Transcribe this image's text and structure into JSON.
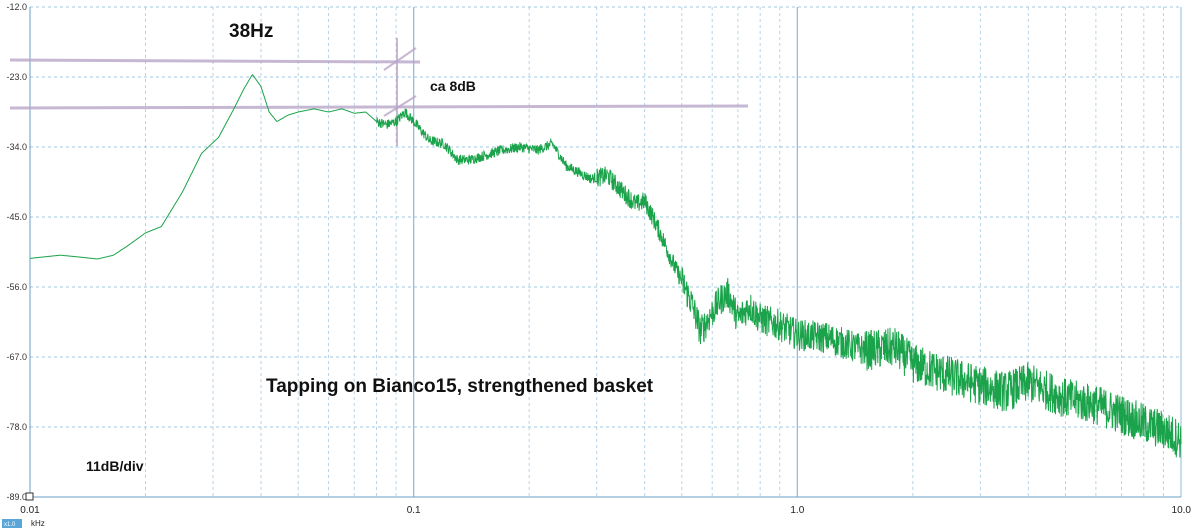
{
  "chart_data": {
    "type": "line",
    "x_scale": "log",
    "grid": true,
    "xlim": [
      0.01,
      10.0
    ],
    "ylim": [
      -89.0,
      -12.0
    ],
    "x_unit": "kHz",
    "y_ticks": [
      "-12.0",
      "-23.0",
      "-34.0",
      "-45.0",
      "-56.0",
      "-67.0",
      "-78.0",
      "-89.0"
    ],
    "x_ticks": [
      "0.01",
      "0.1",
      "1.0",
      "10.0"
    ],
    "series": [
      {
        "color": "#1aa34a",
        "x": [
          0.01,
          0.012,
          0.0135,
          0.015,
          0.0165,
          0.018,
          0.02,
          0.022,
          0.025,
          0.028,
          0.031,
          0.034,
          0.036,
          0.038,
          0.04,
          0.042,
          0.044,
          0.047,
          0.05,
          0.055,
          0.06,
          0.065,
          0.07,
          0.075,
          0.08,
          0.085,
          0.09,
          0.095,
          0.1,
          0.11,
          0.12,
          0.13,
          0.14,
          0.15,
          0.17,
          0.19,
          0.21,
          0.23,
          0.25,
          0.27,
          0.29,
          0.32,
          0.35,
          0.38,
          0.4,
          0.42,
          0.45,
          0.48,
          0.5,
          0.53,
          0.56,
          0.6,
          0.63,
          0.66,
          0.7,
          0.75,
          0.8,
          0.9,
          1.0,
          1.2,
          1.5,
          1.8,
          2.0,
          2.5,
          3.0,
          3.5,
          4.0,
          5.0,
          6.0,
          7.0,
          8.0,
          9.0,
          10.0
        ],
        "y": [
          -51.5,
          -51.0,
          -51.3,
          -51.6,
          -51.0,
          -49.5,
          -47.5,
          -46.5,
          -41.0,
          -35.0,
          -32.5,
          -28.0,
          -25.0,
          -22.6,
          -24.5,
          -28.5,
          -30.0,
          -29.0,
          -28.5,
          -28.0,
          -28.5,
          -28.0,
          -28.7,
          -28.5,
          -30.0,
          -30.5,
          -30.0,
          -28.5,
          -30.0,
          -33.0,
          -33.5,
          -36.0,
          -36.0,
          -35.5,
          -34.5,
          -34.0,
          -34.5,
          -33.5,
          -37.0,
          -38.0,
          -39.0,
          -38.5,
          -41.0,
          -43.0,
          -42.5,
          -45.0,
          -49.0,
          -53.0,
          -55.0,
          -58.5,
          -63.0,
          -60.0,
          -58.0,
          -57.0,
          -61.0,
          -59.0,
          -61.0,
          -62.0,
          -63.5,
          -64.0,
          -66.0,
          -65.5,
          -68.0,
          -70.0,
          -71.5,
          -72.5,
          -71.0,
          -73.5,
          -74.5,
          -76.0,
          -77.5,
          -78.5,
          -80.0
        ]
      }
    ],
    "annotations": {
      "peak_label": "38Hz",
      "delta_label": "ca 8dB",
      "caption": "Tapping on Bianco15, strengthened basket",
      "scale_label": "11dB/div",
      "zoom_label": "x1.0"
    }
  }
}
